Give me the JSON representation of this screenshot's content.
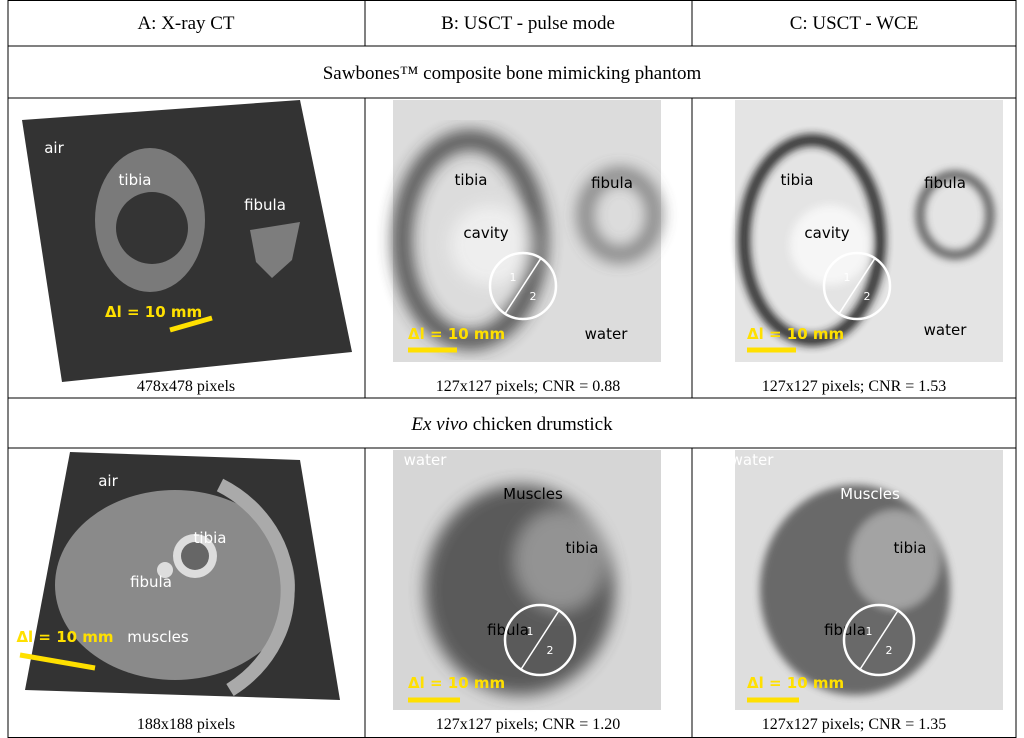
{
  "table": {
    "headers": [
      "A: X-ray CT",
      "B: USCT - pulse mode",
      "C: USCT - WCE"
    ],
    "sections": [
      {
        "title": "Sawbones™ composite bone mimicking phantom",
        "panels": [
          {
            "labels": [
              "air",
              "tibia",
              "fibula"
            ],
            "scale": "Δl = 10 mm",
            "caption": "478x478 pixels"
          },
          {
            "labels": [
              "tibia",
              "fibula",
              "cavity",
              "water"
            ],
            "regions": [
              "1",
              "2"
            ],
            "scale": "Δl = 10 mm",
            "caption": "127x127 pixels; CNR = 0.88"
          },
          {
            "labels": [
              "tibia",
              "fibula",
              "cavity",
              "water"
            ],
            "regions": [
              "1",
              "2"
            ],
            "scale": "Δl = 10 mm",
            "caption": "127x127 pixels; CNR = 1.53"
          }
        ]
      },
      {
        "title_emphasis": "Ex vivo",
        "title": "chicken drumstick",
        "panels": [
          {
            "labels": [
              "air",
              "tibia",
              "fibula",
              "muscles"
            ],
            "scale": "Δl = 10 mm",
            "caption": "188x188 pixels"
          },
          {
            "labels": [
              "water",
              "Muscles",
              "tibia",
              "fibula"
            ],
            "regions": [
              "1",
              "2"
            ],
            "scale": "Δl = 10 mm",
            "caption": "127x127 pixels; CNR = 1.20"
          },
          {
            "labels": [
              "water",
              "Muscles",
              "tibia",
              "fibula"
            ],
            "regions": [
              "1",
              "2"
            ],
            "scale": "Δl = 10 mm",
            "caption": "127x127 pixels; CNR = 1.35"
          }
        ]
      }
    ]
  }
}
